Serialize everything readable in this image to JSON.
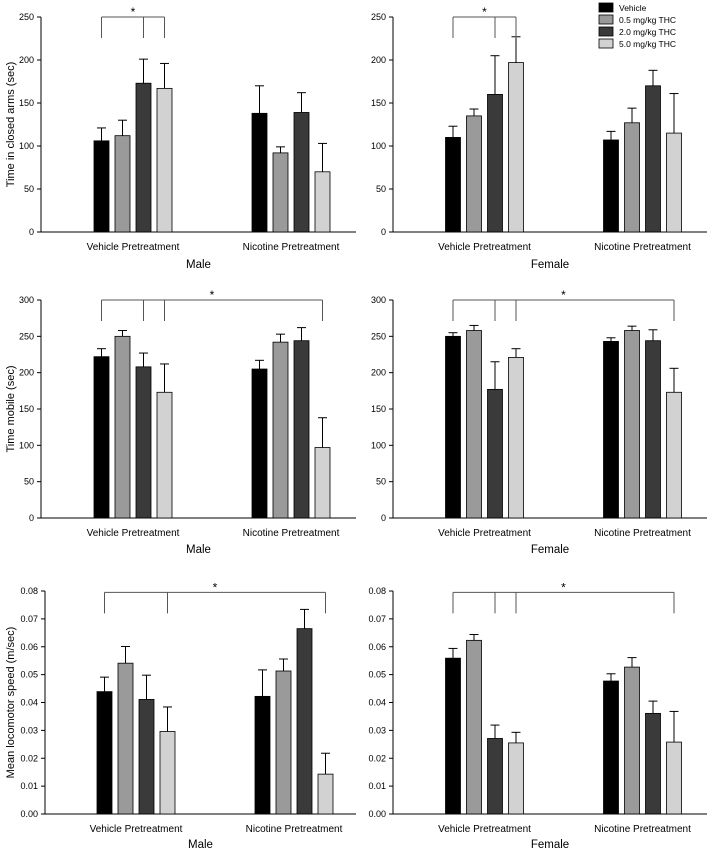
{
  "legend": [
    {
      "label": "Vehicle",
      "color": "#000000"
    },
    {
      "label": "0.5 mg/kg THC",
      "color": "#9a9a9a"
    },
    {
      "label": "2.0 mg/kg THC",
      "color": "#3a3a3a"
    },
    {
      "label": "5.0 mg/kg THC",
      "color": "#d2d2d2"
    }
  ],
  "chart_data": [
    {
      "id": "closed-male",
      "type": "bar",
      "sex": "Male",
      "ylabel": "Time in closed arms (sec)",
      "ylim": [
        0,
        250
      ],
      "yticks": [
        "0",
        "50",
        "100",
        "150",
        "200",
        "250"
      ],
      "categories": [
        "Vehicle Pretreatment",
        "Nicotine Pretreatment"
      ],
      "series": [
        {
          "name": "Vehicle",
          "values": [
            106,
            138
          ],
          "errors": [
            15,
            32
          ]
        },
        {
          "name": "0.5 mg/kg THC",
          "values": [
            112,
            92
          ],
          "errors": [
            18,
            7
          ]
        },
        {
          "name": "2.0 mg/kg THC",
          "values": [
            173,
            139
          ],
          "errors": [
            28,
            23
          ]
        },
        {
          "name": "5.0 mg/kg THC",
          "values": [
            167,
            70
          ],
          "errors": [
            29,
            33
          ]
        }
      ],
      "significance": [
        {
          "label": "*",
          "bars": [
            [
              0,
              0
            ],
            [
              0,
              2
            ],
            [
              0,
              3
            ]
          ],
          "height": 250
        }
      ]
    },
    {
      "id": "closed-female",
      "type": "bar",
      "sex": "Female",
      "ylabel": "",
      "ylim": [
        0,
        250
      ],
      "yticks": [
        "0",
        "50",
        "100",
        "150",
        "200",
        "250"
      ],
      "categories": [
        "Vehicle Pretreatment",
        "Nicotine Pretreatment"
      ],
      "series": [
        {
          "name": "Vehicle",
          "values": [
            110,
            107
          ],
          "errors": [
            13,
            10
          ]
        },
        {
          "name": "0.5 mg/kg THC",
          "values": [
            135,
            127
          ],
          "errors": [
            8,
            17
          ]
        },
        {
          "name": "2.0 mg/kg THC",
          "values": [
            160,
            170
          ],
          "errors": [
            45,
            18
          ]
        },
        {
          "name": "5.0 mg/kg THC",
          "values": [
            197,
            115
          ],
          "errors": [
            30,
            46
          ]
        }
      ],
      "significance": [
        {
          "label": "*",
          "bars": [
            [
              0,
              0
            ],
            [
              0,
              2
            ],
            [
              0,
              3
            ]
          ],
          "height": 250
        }
      ]
    },
    {
      "id": "mobile-male",
      "type": "bar",
      "sex": "Male",
      "ylabel": "Time mobile (sec)",
      "ylim": [
        0,
        300
      ],
      "yticks": [
        "0",
        "50",
        "100",
        "150",
        "200",
        "250",
        "300"
      ],
      "categories": [
        "Vehicle Pretreatment",
        "Nicotine Pretreatment"
      ],
      "series": [
        {
          "name": "Vehicle",
          "values": [
            222,
            205
          ],
          "errors": [
            11,
            12
          ]
        },
        {
          "name": "0.5 mg/kg THC",
          "values": [
            250,
            242
          ],
          "errors": [
            8,
            11
          ]
        },
        {
          "name": "2.0 mg/kg THC",
          "values": [
            208,
            244
          ],
          "errors": [
            19,
            18
          ]
        },
        {
          "name": "5.0 mg/kg THC",
          "values": [
            173,
            97
          ],
          "errors": [
            39,
            41
          ]
        }
      ],
      "significance": [
        {
          "label": "*",
          "bars": [
            [
              0,
              0
            ],
            [
              0,
              2
            ],
            [
              0,
              3
            ],
            [
              1,
              3
            ]
          ],
          "height": 300
        }
      ]
    },
    {
      "id": "mobile-female",
      "type": "bar",
      "sex": "Female",
      "ylabel": "",
      "ylim": [
        0,
        300
      ],
      "yticks": [
        "0",
        "50",
        "100",
        "150",
        "200",
        "250",
        "300"
      ],
      "categories": [
        "Vehicle Pretreatment",
        "Nicotine Pretreatment"
      ],
      "series": [
        {
          "name": "Vehicle",
          "values": [
            250,
            243
          ],
          "errors": [
            5,
            5
          ]
        },
        {
          "name": "0.5 mg/kg THC",
          "values": [
            258,
            258
          ],
          "errors": [
            7,
            6
          ]
        },
        {
          "name": "2.0 mg/kg THC",
          "values": [
            177,
            244
          ],
          "errors": [
            38,
            15
          ]
        },
        {
          "name": "5.0 mg/kg THC",
          "values": [
            221,
            173
          ],
          "errors": [
            12,
            33
          ]
        }
      ],
      "significance": [
        {
          "label": "*",
          "bars": [
            [
              0,
              0
            ],
            [
              0,
              2
            ],
            [
              0,
              3
            ],
            [
              1,
              3
            ]
          ],
          "height": 300
        }
      ]
    },
    {
      "id": "speed-male",
      "type": "bar",
      "sex": "Male",
      "ylabel": "Mean locomotor speed (m/sec)",
      "ylim": [
        0,
        0.08
      ],
      "yticks": [
        "0.00",
        "0.01",
        "0.02",
        "0.03",
        "0.04",
        "0.05",
        "0.06",
        "0.07",
        "0.08"
      ],
      "categories": [
        "Vehicle Pretreatment",
        "Nicotine Pretreatment"
      ],
      "series": [
        {
          "name": "Vehicle",
          "values": [
            0.0439,
            0.0422
          ],
          "errors": [
            0.0052,
            0.0095
          ]
        },
        {
          "name": "0.5 mg/kg THC",
          "values": [
            0.0541,
            0.0513
          ],
          "errors": [
            0.006,
            0.0043
          ]
        },
        {
          "name": "2.0 mg/kg THC",
          "values": [
            0.0411,
            0.0665
          ],
          "errors": [
            0.0087,
            0.0069
          ]
        },
        {
          "name": "5.0 mg/kg THC",
          "values": [
            0.0296,
            0.0143
          ],
          "errors": [
            0.0088,
            0.0075
          ]
        }
      ],
      "significance": [
        {
          "label": "*",
          "bars": [
            [
              0,
              0
            ],
            [
              0,
              3
            ],
            [
              1,
              3
            ]
          ],
          "height": 0.0795
        }
      ]
    },
    {
      "id": "speed-female",
      "type": "bar",
      "sex": "Female",
      "ylabel": "",
      "ylim": [
        0,
        0.08
      ],
      "yticks": [
        "0.00",
        "0.01",
        "0.02",
        "0.03",
        "0.04",
        "0.05",
        "0.06",
        "0.07",
        "0.08"
      ],
      "categories": [
        "Vehicle Pretreatment",
        "Nicotine Pretreatment"
      ],
      "series": [
        {
          "name": "Vehicle",
          "values": [
            0.0559,
            0.0477
          ],
          "errors": [
            0.0035,
            0.0026
          ]
        },
        {
          "name": "0.5 mg/kg THC",
          "values": [
            0.0623,
            0.0527
          ],
          "errors": [
            0.0021,
            0.0034
          ]
        },
        {
          "name": "2.0 mg/kg THC",
          "values": [
            0.0271,
            0.0361
          ],
          "errors": [
            0.0048,
            0.0044
          ]
        },
        {
          "name": "5.0 mg/kg THC",
          "values": [
            0.0255,
            0.0258
          ],
          "errors": [
            0.0038,
            0.011
          ]
        }
      ],
      "significance": [
        {
          "label": "*",
          "bars": [
            [
              0,
              0
            ],
            [
              0,
              2
            ],
            [
              0,
              3
            ],
            [
              1,
              3
            ]
          ],
          "height": 0.0795
        }
      ]
    }
  ]
}
